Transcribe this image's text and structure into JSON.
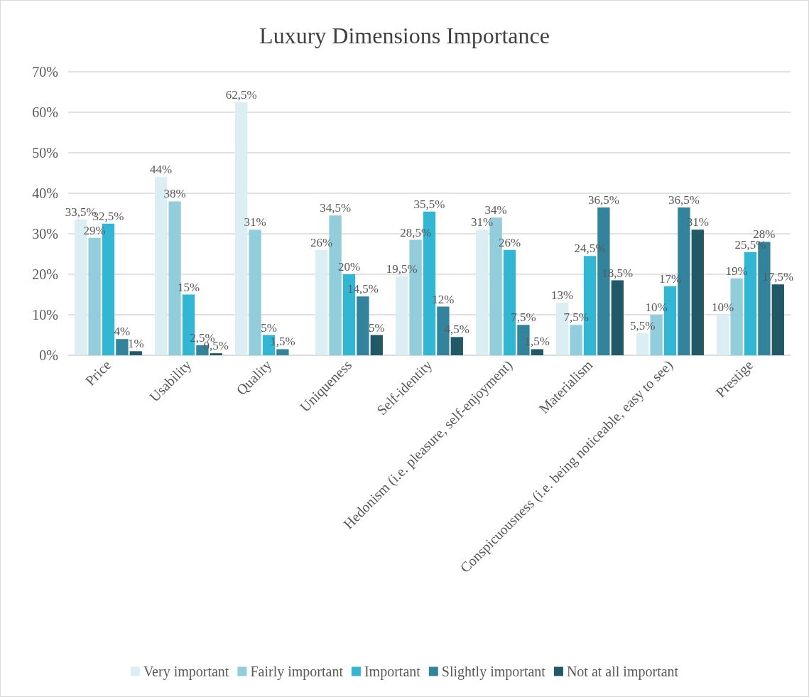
{
  "chart_data": {
    "type": "bar",
    "title": "Luxury Dimensions Importance",
    "categories": [
      "Price",
      "Usability",
      "Quality",
      "Uniqueness",
      "Self-identity",
      "Hedonism (i.e. pleasure, self-enjoyment)",
      "Materialism",
      "Conspicuousness (i.e. being noticeable, easy to see)",
      "Prestige"
    ],
    "series": [
      {
        "name": "Very important",
        "color": "#dbeef4",
        "values": [
          33.5,
          44,
          62.5,
          26,
          19.5,
          31,
          13,
          5.5,
          10
        ],
        "value_labels": [
          "33,5%",
          "44%",
          "62,5%",
          "26%",
          "19,5%",
          "31%",
          "13%",
          "5,5%",
          "10%"
        ]
      },
      {
        "name": "Fairly important",
        "color": "#92cddc",
        "values": [
          29,
          38,
          31,
          34.5,
          28.5,
          34,
          7.5,
          10,
          19
        ],
        "value_labels": [
          "29%",
          "38%",
          "31%",
          "34,5%",
          "28,5%",
          "34%",
          "7,5%",
          "10%",
          "19%"
        ]
      },
      {
        "name": "Important",
        "color": "#31b6d3",
        "values": [
          32.5,
          15,
          5,
          20,
          35.5,
          26,
          24.5,
          17,
          25.5
        ],
        "value_labels": [
          "32,5%",
          "15%",
          "5%",
          "20%",
          "35,5%",
          "26%",
          "24,5%",
          "17%",
          "25,5%"
        ]
      },
      {
        "name": "Slightly important",
        "color": "#31849b",
        "values": [
          4,
          2.5,
          1.5,
          14.5,
          12,
          7.5,
          36.5,
          36.5,
          28
        ],
        "value_labels": [
          "4%",
          "2,5%",
          "1,5%",
          "14,5%",
          "12%",
          "7,5%",
          "36,5%",
          "36,5%",
          "28%"
        ]
      },
      {
        "name": "Not at all important",
        "color": "#215967",
        "values": [
          1,
          0.5,
          null,
          5,
          4.5,
          1.5,
          18.5,
          31,
          17.5
        ],
        "value_labels": [
          "1%",
          "0,5%",
          null,
          "5%",
          "4,5%",
          "1,5%",
          "18,5%",
          "31%",
          "17,5%"
        ]
      }
    ],
    "ylim": [
      0,
      70
    ],
    "yticks": [
      {
        "value": 0,
        "label": "0%"
      },
      {
        "value": 10,
        "label": "10%"
      },
      {
        "value": 20,
        "label": "20%"
      },
      {
        "value": 30,
        "label": "30%"
      },
      {
        "value": 40,
        "label": "40%"
      },
      {
        "value": 50,
        "label": "50%"
      },
      {
        "value": 60,
        "label": "60%"
      },
      {
        "value": 70,
        "label": "70%"
      }
    ],
    "grid": "y",
    "legend": "bottom"
  }
}
